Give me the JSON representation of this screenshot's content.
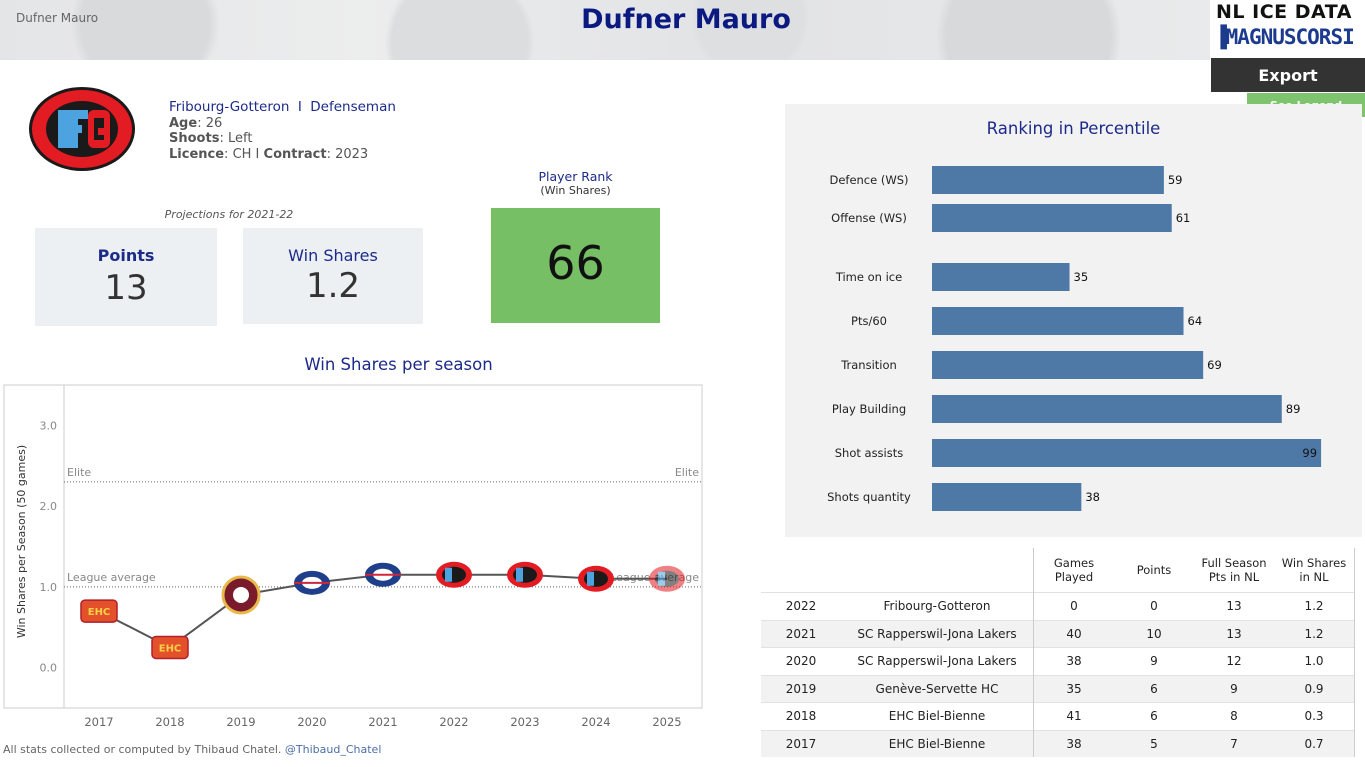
{
  "header": {
    "small_title": "Dufner Mauro",
    "title": "Dufner Mauro"
  },
  "branding": {
    "logo_top": "NL ICE DATA",
    "logo_bottom": "MAGNUSCORSI",
    "export_label": "Export",
    "legend_label": "See Legend"
  },
  "player": {
    "team": "Fribourg-Gotteron",
    "separator": "I",
    "position": "Defenseman",
    "age_label": "Age",
    "age": "26",
    "shoots_label": "Shoots",
    "shoots": "Left",
    "licence_label": "Licence",
    "licence": "CH",
    "contract_label": "Contract",
    "contract": "2023",
    "team_logo_icon": "fribourg-gotteron-logo-icon"
  },
  "projections": {
    "title": "Projections for 2021-22",
    "points_label": "Points",
    "points_value": "13",
    "ws_label": "Win Shares",
    "ws_value": "1.2"
  },
  "rank": {
    "title": "Player Rank",
    "subtitle": "(Win Shares)",
    "value": "66",
    "color": "#76bf64"
  },
  "ws_chart_title": "Win Shares per season",
  "pct_chart_title": "Ranking in Percentile",
  "chart_data": [
    {
      "type": "line",
      "title": "Win Shares per season",
      "xlabel": "",
      "ylabel": "Win Shares per Season (50 games)",
      "x": [
        "2017",
        "2018",
        "2019",
        "2020",
        "2021",
        "2022",
        "2023",
        "2024",
        "2025"
      ],
      "series": [
        {
          "values": [
            0.7,
            0.25,
            0.9,
            1.05,
            1.15,
            1.15,
            1.15,
            1.1,
            1.1
          ]
        }
      ],
      "point_logos": [
        "biel-logo-icon",
        "biel-logo-icon",
        "geneve-servette-logo-icon",
        "rapperswil-logo-icon",
        "rapperswil-logo-icon",
        "fribourg-logo-icon",
        "fribourg-logo-icon",
        "fribourg-logo-icon",
        "fribourg-logo-icon"
      ],
      "yticks": [
        "0.0",
        "1.0",
        "2.0",
        "3.0"
      ],
      "ylim": [
        -0.5,
        3.5
      ],
      "reference_lines": [
        {
          "label": "Elite",
          "value": 2.3
        },
        {
          "label": "League average",
          "value": 1.0
        }
      ],
      "grid": false,
      "line_color": "#555555"
    },
    {
      "type": "bar",
      "orientation": "horizontal",
      "title": "Ranking in Percentile",
      "categories": [
        "Defence (WS)",
        "Offense (WS)",
        "Time on ice",
        "Pts/60",
        "Transition",
        "Play Building",
        "Shot assists",
        "Shots quantity"
      ],
      "values": [
        59,
        61,
        35,
        64,
        69,
        89,
        99,
        38
      ],
      "xlim": [
        0,
        100
      ],
      "bar_color": "#4e79a7",
      "grid": false
    }
  ],
  "table": {
    "headers": [
      "",
      "",
      "Games\nPlayed",
      "Points",
      "Full Season\nPts in NL",
      "Win Shares\nin NL"
    ],
    "rows": [
      [
        "2022",
        "Fribourg-Gotteron",
        "0",
        "0",
        "13",
        "1.2"
      ],
      [
        "2021",
        "SC Rapperswil-Jona Lakers",
        "40",
        "10",
        "13",
        "1.2"
      ],
      [
        "2020",
        "SC Rapperswil-Jona Lakers",
        "38",
        "9",
        "12",
        "1.0"
      ],
      [
        "2019",
        "Genève-Servette HC",
        "35",
        "6",
        "9",
        "0.9"
      ],
      [
        "2018",
        "EHC Biel-Bienne",
        "41",
        "6",
        "8",
        "0.3"
      ],
      [
        "2017",
        "EHC Biel-Bienne",
        "38",
        "5",
        "7",
        "0.7"
      ]
    ]
  },
  "footer": {
    "text": "All stats collected or computed by Thibaud Chatel.",
    "handle": "@Thibaud_Chatel"
  }
}
